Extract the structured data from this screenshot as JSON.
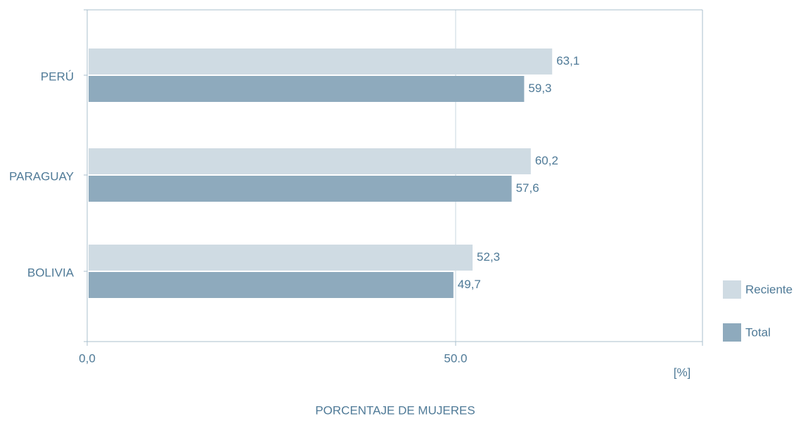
{
  "chart_data": {
    "type": "hbar",
    "categories": [
      "PERÚ",
      "PARAGUAY",
      "BOLIVIA"
    ],
    "series": [
      {
        "name": "Reciente",
        "color": "#cfdbe3",
        "values": [
          63.1,
          60.2,
          52.3
        ],
        "value_labels": [
          "63,1",
          "60,2",
          "52,3"
        ]
      },
      {
        "name": "Total",
        "color": "#8eaabd",
        "values": [
          59.3,
          57.6,
          49.7
        ],
        "value_labels": [
          "59,3",
          "57,6",
          "49,7"
        ]
      }
    ],
    "xlim": [
      0,
      83.5
    ],
    "xticks": [
      {
        "value": 0,
        "label": "0,0"
      },
      {
        "value": 50,
        "label": "50.0"
      }
    ],
    "x_unit": "[%]",
    "x_label": "PORCENTAJE DE MUJERES",
    "grid": true,
    "legend": "bottom-right"
  }
}
